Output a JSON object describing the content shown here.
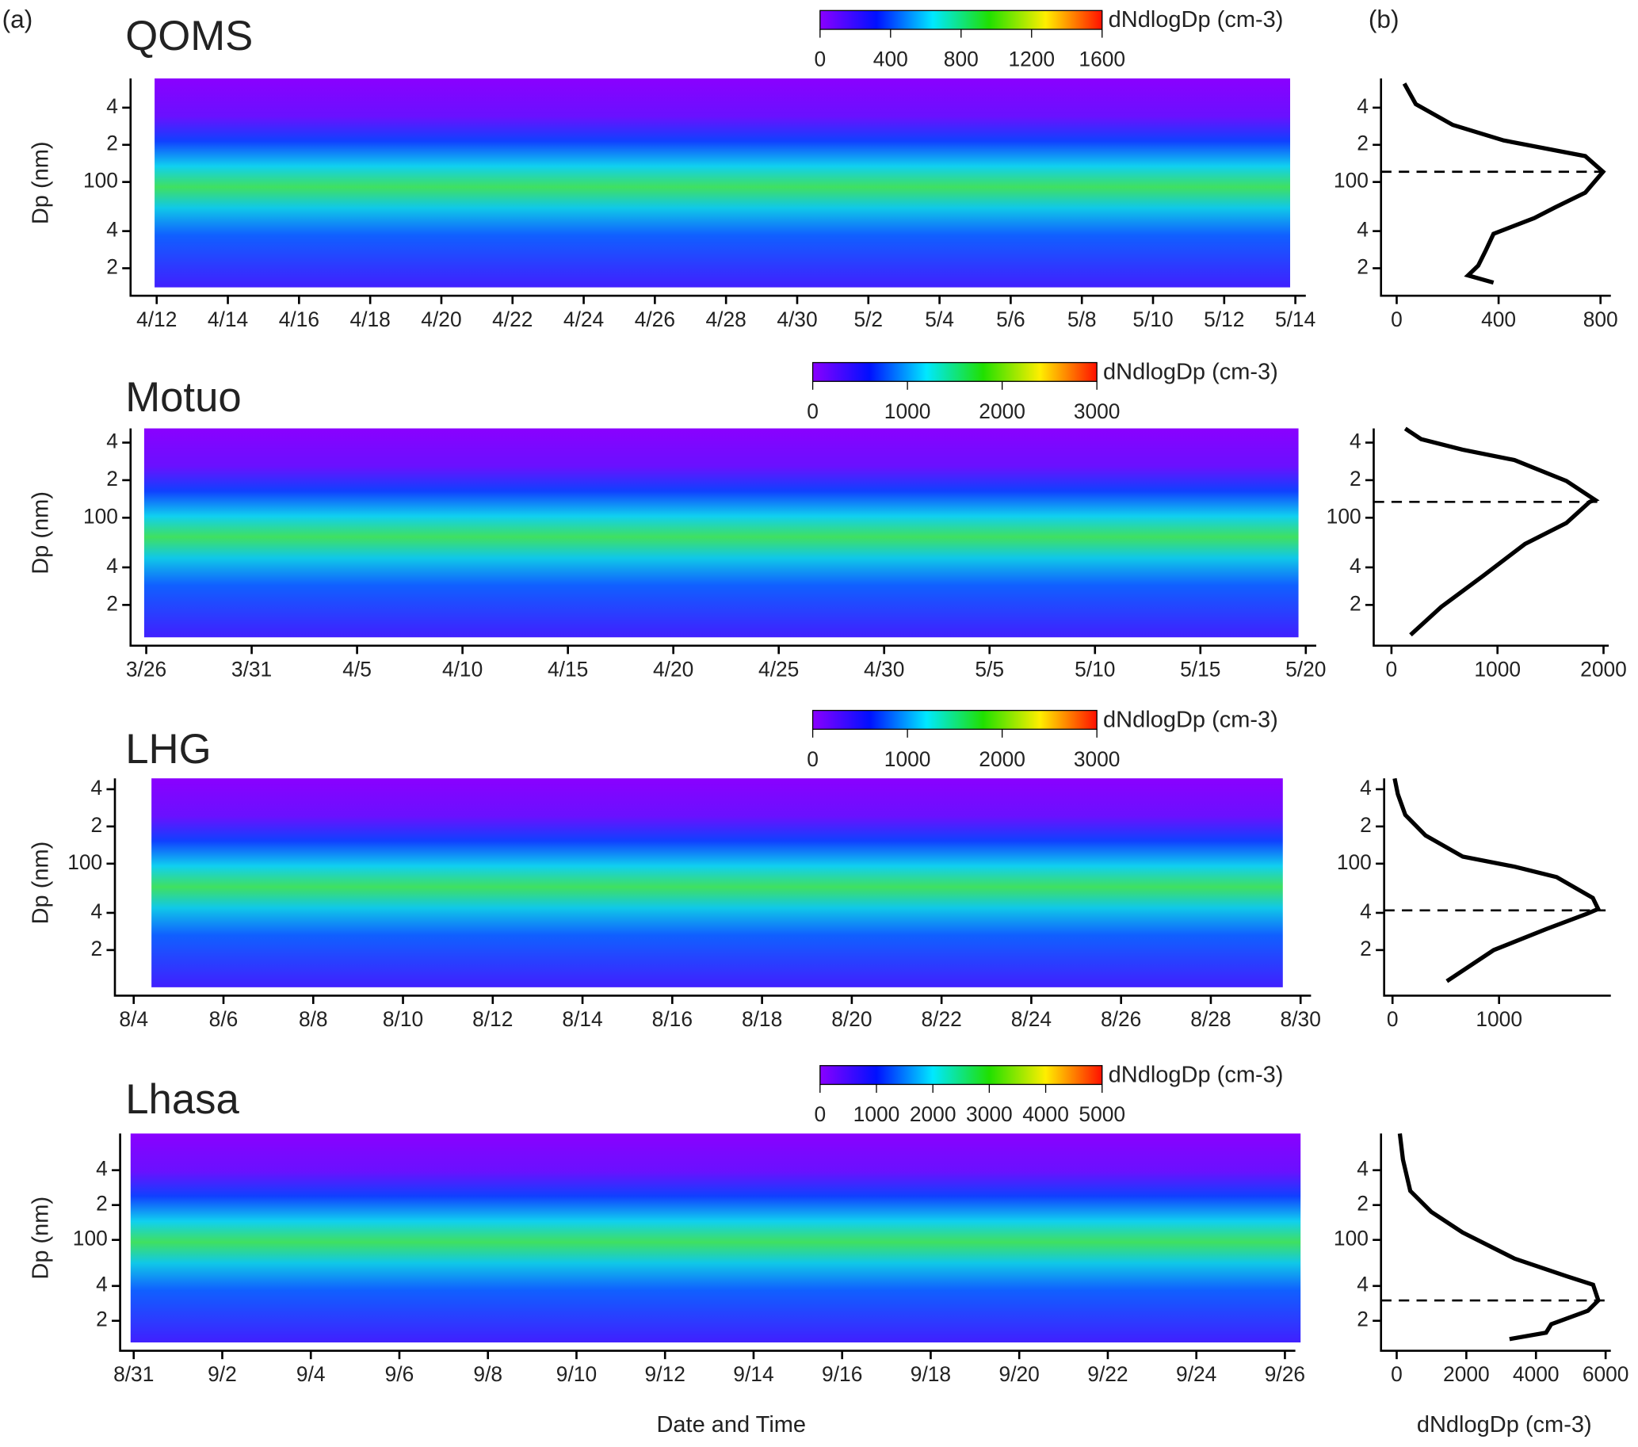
{
  "panel_labels": [
    "(a)",
    "(b)"
  ],
  "chart_data": [
    {
      "type": "heatmap",
      "title": "QOMS",
      "ylabel": "Dp (nm)",
      "yscale": "log",
      "ylim": [
        14,
        690
      ],
      "yticks": [
        {
          "value": 20,
          "label": "2"
        },
        {
          "value": 40,
          "label": "4"
        },
        100,
        {
          "value": 200,
          "label": "2"
        },
        {
          "value": 400,
          "label": "4"
        }
      ],
      "categories": [
        "4/12",
        "4/14",
        "4/16",
        "4/18",
        "4/20",
        "4/22",
        "4/24",
        "4/26",
        "4/28",
        "4/30",
        "5/2",
        "5/4",
        "5/6",
        "5/8",
        "5/10",
        "5/12",
        "5/14"
      ],
      "colorbar": {
        "label": "dNdlogDp (cm-3)",
        "clim": [
          0,
          1600
        ],
        "cticks": [
          0,
          400,
          800,
          1200,
          1600
        ]
      },
      "profile": {
        "type": "line",
        "xlim": [
          0,
          820
        ],
        "xticks": [
          0,
          400,
          800
        ],
        "reference_line": 121,
        "x": [
          380,
          280,
          320,
          350,
          380,
          540,
          620,
          740,
          810,
          740,
          420,
          220,
          75,
          30
        ],
        "y": [
          15.3,
          17.5,
          21,
          28,
          38,
          51,
          62,
          82,
          121,
          162,
          217,
          290,
          427,
          627
        ]
      }
    },
    {
      "type": "heatmap",
      "title": "Motuo",
      "ylabel": "Dp (nm)",
      "yscale": "log",
      "ylim": [
        11,
        520
      ],
      "yticks": [
        {
          "value": 20,
          "label": "2"
        },
        {
          "value": 40,
          "label": "4"
        },
        100,
        {
          "value": 200,
          "label": "2"
        },
        {
          "value": 400,
          "label": "4"
        }
      ],
      "categories": [
        "3/26",
        "3/31",
        "4/5",
        "4/10",
        "4/15",
        "4/20",
        "4/25",
        "4/30",
        "5/5",
        "5/10",
        "5/15",
        "5/20"
      ],
      "colorbar": {
        "label": "dNdlogDp (cm-3)",
        "clim": [
          0,
          3000
        ],
        "cticks": [
          0,
          1000,
          2000,
          3000
        ]
      },
      "profile": {
        "type": "line",
        "xlim": [
          0,
          2000
        ],
        "xticks": [
          0,
          1000,
          2000
        ],
        "reference_line": 134,
        "x": [
          180,
          470,
          870,
          1260,
          1650,
          1870,
          1920,
          1650,
          1160,
          670,
          280,
          130
        ],
        "y": [
          11.5,
          19.3,
          34.5,
          61.7,
          90.8,
          134,
          139,
          197,
          290,
          351,
          426,
          518
        ]
      }
    },
    {
      "type": "heatmap",
      "title": "LHG",
      "ylabel": "Dp (nm)",
      "yscale": "log",
      "ylim": [
        10,
        490
      ],
      "yticks": [
        {
          "value": 20,
          "label": "2"
        },
        {
          "value": 40,
          "label": "4"
        },
        100,
        {
          "value": 200,
          "label": "2"
        },
        {
          "value": 400,
          "label": "4"
        }
      ],
      "categories": [
        "8/4",
        "8/6",
        "8/8",
        "8/10",
        "8/12",
        "8/14",
        "8/16",
        "8/18",
        "8/20",
        "8/22",
        "8/24",
        "8/26",
        "8/28",
        "8/30"
      ],
      "colorbar": {
        "label": "dNdlogDp (cm-3)",
        "clim": [
          0,
          3000
        ],
        "cticks": [
          0,
          1000,
          2000,
          3000
        ]
      },
      "profile": {
        "type": "line",
        "xlim": [
          0,
          2000
        ],
        "xticks": [
          0,
          1000
        ],
        "reference_line": 41.9,
        "x": [
          510,
          950,
          1440,
          1830,
          1930,
          1880,
          1540,
          1150,
          660,
          310,
          120,
          50,
          20
        ],
        "y": [
          11.2,
          20,
          29.5,
          39.5,
          43,
          52.8,
          77.8,
          94.4,
          114,
          169,
          248,
          365,
          489
        ]
      }
    },
    {
      "type": "heatmap",
      "title": "Lhasa",
      "ylabel": "Dp (nm)",
      "xlabel": "Date and Time",
      "yscale": "log",
      "ylim": [
        13,
        830
      ],
      "yticks": [
        {
          "value": 20,
          "label": "2"
        },
        {
          "value": 40,
          "label": "4"
        },
        100,
        {
          "value": 200,
          "label": "2"
        },
        {
          "value": 400,
          "label": "4"
        }
      ],
      "categories": [
        "8/31",
        "9/2",
        "9/4",
        "9/6",
        "9/8",
        "9/10",
        "9/12",
        "9/14",
        "9/16",
        "9/18",
        "9/20",
        "9/22",
        "9/24",
        "9/26"
      ],
      "colorbar": {
        "label": "dNdlogDp (cm-3)",
        "clim": [
          0,
          5000
        ],
        "cticks": [
          0,
          1000,
          2000,
          3000,
          4000,
          5000
        ]
      },
      "profile": {
        "type": "line",
        "xlim": [
          0,
          6000
        ],
        "xticks": [
          0,
          2000,
          4000,
          6000
        ],
        "reference_line": 30,
        "xlabel": "dNdlogDp (cm-3)",
        "x": [
          3240,
          4290,
          4440,
          5490,
          5790,
          5640,
          4890,
          3390,
          1890,
          990,
          390,
          180,
          90
        ],
        "y": [
          13.9,
          15.8,
          18.7,
          24.4,
          30,
          41,
          48.4,
          68.8,
          116,
          175,
          265,
          494,
          830
        ]
      }
    }
  ]
}
